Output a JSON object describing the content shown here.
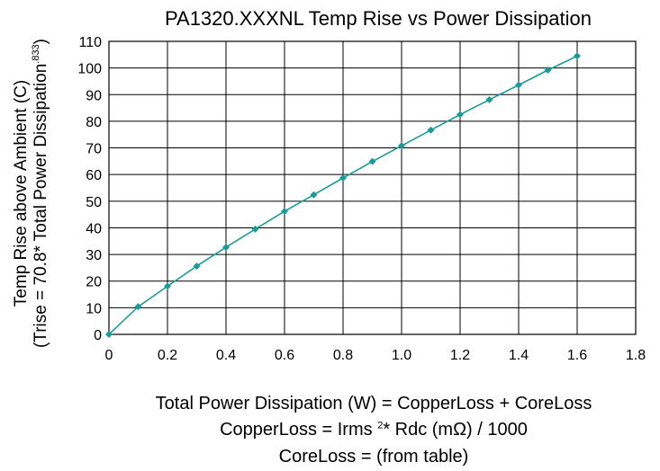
{
  "chart_data": {
    "type": "line",
    "title": "PA1320.XXXNL Temp Rise vs Power Dissipation",
    "ylabel_line1": "Temp Rise above Ambient (C)",
    "ylabel_line2_main": "(Trise = 70.8* Total Power Dissipation",
    "ylabel_line2_sup": ".833",
    "ylabel_line2_end": ")",
    "xlim": [
      0,
      1.8
    ],
    "ylim": [
      0,
      110
    ],
    "x_ticks": [
      "0",
      "0.2",
      "0.4",
      "0.6",
      "0.8",
      "1.0",
      "1.2",
      "1.4",
      "1.6",
      "1.8"
    ],
    "x_tick_values": [
      0,
      0.2,
      0.4,
      0.6,
      0.8,
      1.0,
      1.2,
      1.4,
      1.6,
      1.8
    ],
    "y_ticks": [
      "0",
      "10",
      "20",
      "30",
      "40",
      "50",
      "60",
      "70",
      "80",
      "90",
      "100",
      "110"
    ],
    "y_tick_values": [
      0,
      10,
      20,
      30,
      40,
      50,
      60,
      70,
      80,
      90,
      100,
      110
    ],
    "grid": true,
    "series_color": "#1a9a9a",
    "x": [
      0,
      0.1,
      0.2,
      0.3,
      0.4,
      0.5,
      0.6,
      0.7,
      0.8,
      0.9,
      1.0,
      1.1,
      1.2,
      1.3,
      1.4,
      1.5,
      1.6
    ],
    "y": [
      0,
      10.4,
      18.1,
      25.6,
      32.7,
      39.5,
      46.2,
      52.4,
      58.7,
      64.9,
      70.8,
      76.7,
      82.5,
      88.1,
      93.6,
      99.2,
      104.5
    ]
  },
  "notes": {
    "line1": "Total Power Dissipation (W) = CopperLoss + CoreLoss",
    "line2_a": "CopperLoss = Irms ",
    "line2_sup": "2",
    "line2_b": "* Rdc (mΩ) / 1000",
    "line3": "CoreLoss = (from table)"
  }
}
